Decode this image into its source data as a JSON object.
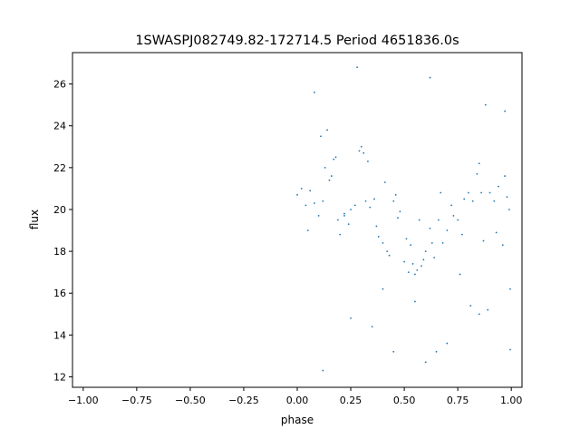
{
  "chart_data": {
    "type": "scatter",
    "title": "1SWASPJ082749.82-172714.5 Period 4651836.0s",
    "xlabel": "phase",
    "ylabel": "flux",
    "xlim": [
      -1.05,
      1.05
    ],
    "ylim": [
      11.5,
      27.5
    ],
    "x_ticks": [
      -1.0,
      -0.75,
      -0.5,
      -0.25,
      0.0,
      0.25,
      0.5,
      0.75,
      1.0
    ],
    "x_tick_labels": [
      "−1.00",
      "−0.75",
      "−0.50",
      "−0.25",
      "0.00",
      "0.25",
      "0.50",
      "0.75",
      "1.00"
    ],
    "y_ticks": [
      12,
      14,
      16,
      18,
      20,
      22,
      24,
      26
    ],
    "y_tick_labels": [
      "12",
      "14",
      "16",
      "18",
      "20",
      "22",
      "24",
      "26"
    ],
    "grid": false,
    "marker_color": "#1f77b4",
    "series": [
      {
        "points": [
          [
            0.0,
            20.7
          ],
          [
            0.02,
            21.0
          ],
          [
            0.04,
            20.2
          ],
          [
            0.05,
            19.0
          ],
          [
            0.06,
            20.9
          ],
          [
            0.08,
            20.3
          ],
          [
            0.1,
            19.7
          ],
          [
            0.11,
            23.5
          ],
          [
            0.12,
            20.4
          ],
          [
            0.13,
            22.0
          ],
          [
            0.14,
            23.8
          ],
          [
            0.15,
            21.4
          ],
          [
            0.16,
            21.6
          ],
          [
            0.17,
            22.4
          ],
          [
            0.18,
            22.5
          ],
          [
            0.19,
            19.5
          ],
          [
            0.2,
            18.8
          ],
          [
            0.22,
            19.7
          ],
          [
            0.24,
            19.3
          ],
          [
            0.25,
            20.0
          ],
          [
            0.27,
            20.2
          ],
          [
            0.29,
            22.8
          ],
          [
            0.3,
            23.0
          ],
          [
            0.31,
            22.7
          ],
          [
            0.32,
            20.4
          ],
          [
            0.33,
            22.3
          ],
          [
            0.34,
            20.1
          ],
          [
            0.36,
            20.5
          ],
          [
            0.38,
            18.7
          ],
          [
            0.4,
            18.4
          ],
          [
            0.41,
            21.3
          ],
          [
            0.42,
            18.0
          ],
          [
            0.43,
            17.8
          ],
          [
            0.45,
            20.4
          ],
          [
            0.46,
            20.7
          ],
          [
            0.48,
            19.9
          ],
          [
            0.5,
            17.5
          ],
          [
            0.51,
            18.6
          ],
          [
            0.52,
            17.0
          ],
          [
            0.53,
            18.3
          ],
          [
            0.54,
            17.4
          ],
          [
            0.55,
            16.9
          ],
          [
            0.56,
            17.1
          ],
          [
            0.57,
            19.5
          ],
          [
            0.58,
            17.3
          ],
          [
            0.59,
            17.6
          ],
          [
            0.6,
            18.0
          ],
          [
            0.62,
            19.1
          ],
          [
            0.63,
            18.4
          ],
          [
            0.64,
            17.7
          ],
          [
            0.66,
            19.5
          ],
          [
            0.68,
            18.4
          ],
          [
            0.7,
            19.0
          ],
          [
            0.72,
            20.2
          ],
          [
            0.73,
            19.7
          ],
          [
            0.75,
            19.5
          ],
          [
            0.77,
            18.8
          ],
          [
            0.78,
            20.5
          ],
          [
            0.8,
            20.8
          ],
          [
            0.81,
            15.4
          ],
          [
            0.82,
            20.4
          ],
          [
            0.84,
            21.7
          ],
          [
            0.85,
            15.0
          ],
          [
            0.86,
            20.8
          ],
          [
            0.87,
            18.5
          ],
          [
            0.89,
            15.2
          ],
          [
            0.9,
            20.8
          ],
          [
            0.92,
            20.4
          ],
          [
            0.94,
            21.1
          ],
          [
            0.96,
            18.3
          ],
          [
            0.97,
            21.6
          ],
          [
            0.98,
            20.6
          ],
          [
            0.99,
            20.0
          ],
          [
            0.995,
            13.3
          ],
          [
            0.995,
            16.2
          ],
          [
            0.7,
            13.6
          ],
          [
            0.6,
            12.7
          ],
          [
            0.35,
            14.4
          ],
          [
            0.12,
            12.3
          ],
          [
            0.45,
            13.2
          ],
          [
            0.55,
            15.6
          ],
          [
            0.4,
            16.2
          ],
          [
            0.25,
            14.8
          ],
          [
            0.65,
            13.2
          ],
          [
            0.85,
            22.2
          ],
          [
            0.88,
            25.0
          ],
          [
            0.62,
            26.3
          ],
          [
            0.28,
            26.8
          ],
          [
            0.97,
            24.7
          ],
          [
            0.08,
            25.6
          ],
          [
            0.22,
            19.8
          ],
          [
            0.37,
            19.2
          ],
          [
            0.47,
            19.6
          ],
          [
            0.67,
            20.8
          ],
          [
            0.76,
            16.9
          ],
          [
            0.93,
            18.9
          ]
        ]
      }
    ]
  }
}
